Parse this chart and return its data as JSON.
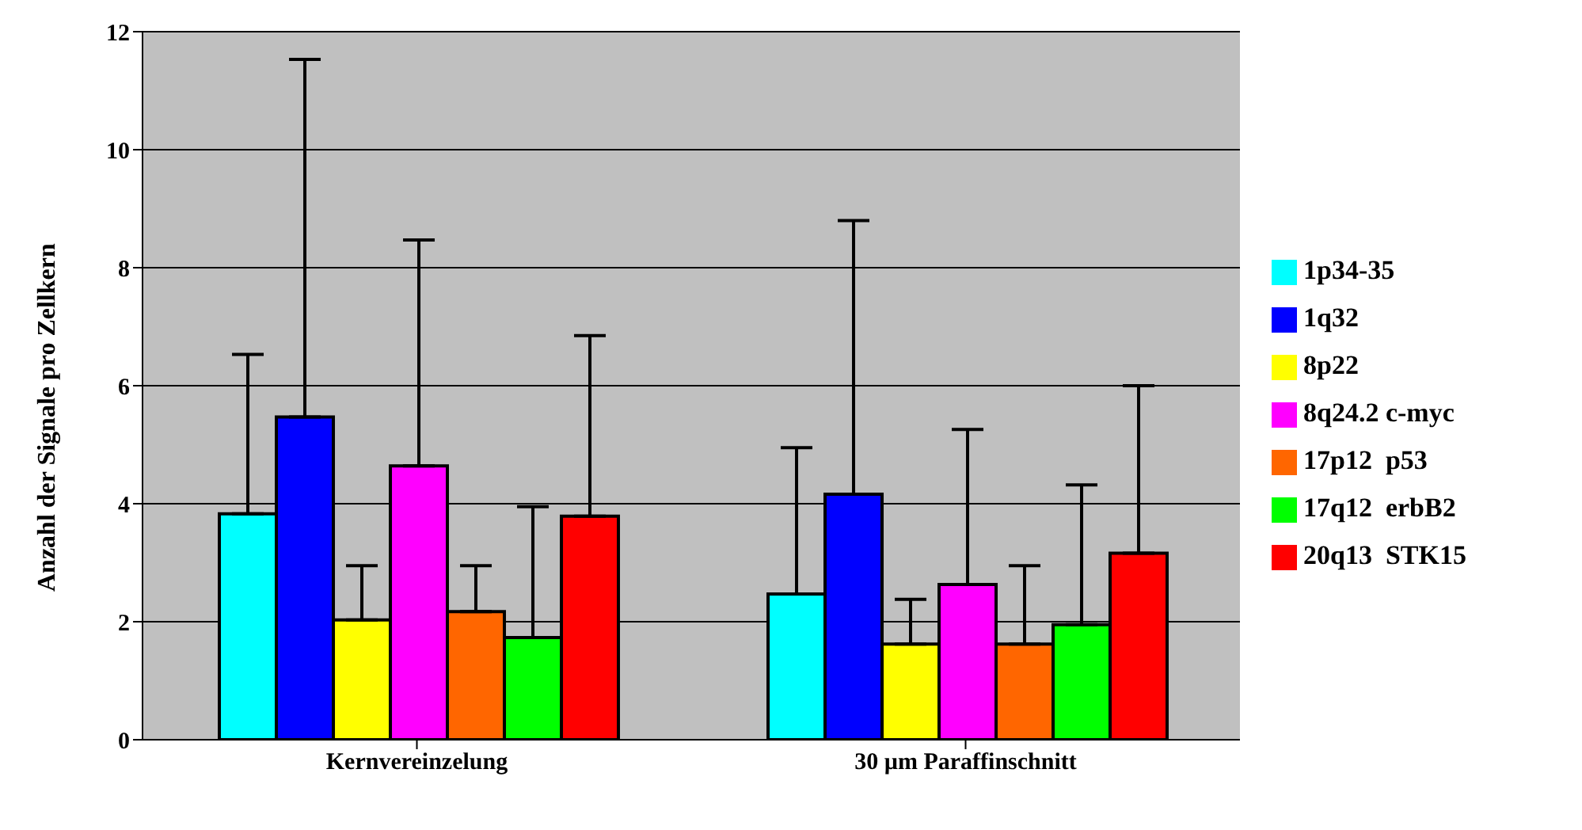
{
  "chart_data": {
    "type": "bar",
    "ylabel": "Anzahl der Signale pro Zellkern",
    "categories": [
      "Kernvereinzelung",
      "30 µm Paraffinschnitt"
    ],
    "series": [
      {
        "name": "1p34-35",
        "color": "#00ffff",
        "values": [
          3.83,
          2.47
        ],
        "errors": [
          [
            3.83,
            6.53
          ],
          [
            2.47,
            4.95
          ]
        ]
      },
      {
        "name": "1q32",
        "color": "#0000ff",
        "values": [
          5.47,
          4.16
        ],
        "errors": [
          [
            5.47,
            11.53
          ],
          [
            4.16,
            8.8
          ]
        ]
      },
      {
        "name": "8p22",
        "color": "#ffff00",
        "values": [
          2.03,
          1.62
        ],
        "errors": [
          [
            2.03,
            2.95
          ],
          [
            1.62,
            2.38
          ]
        ]
      },
      {
        "name": "8q24.2 c-myc",
        "color": "#ff00ff",
        "values": [
          4.64,
          2.63
        ],
        "errors": [
          [
            4.64,
            8.47
          ],
          [
            2.63,
            5.26
          ]
        ]
      },
      {
        "name": "17p12  p53",
        "color": "#ff6600",
        "values": [
          2.17,
          1.62
        ],
        "errors": [
          [
            2.17,
            2.95
          ],
          [
            1.62,
            2.95
          ]
        ]
      },
      {
        "name": "17q12  erbB2",
        "color": "#00ff00",
        "values": [
          1.73,
          1.95
        ],
        "errors": [
          [
            1.73,
            3.95
          ],
          [
            1.95,
            4.32
          ]
        ]
      },
      {
        "name": "20q13  STK15",
        "color": "#ff0000",
        "values": [
          3.79,
          3.16
        ],
        "errors": [
          [
            3.79,
            6.85
          ],
          [
            3.16,
            6.0
          ]
        ]
      }
    ],
    "ylim": [
      0,
      12
    ],
    "yticks": [
      0,
      2,
      4,
      6,
      8,
      10,
      12
    ],
    "grid": "y",
    "legend": "right"
  }
}
